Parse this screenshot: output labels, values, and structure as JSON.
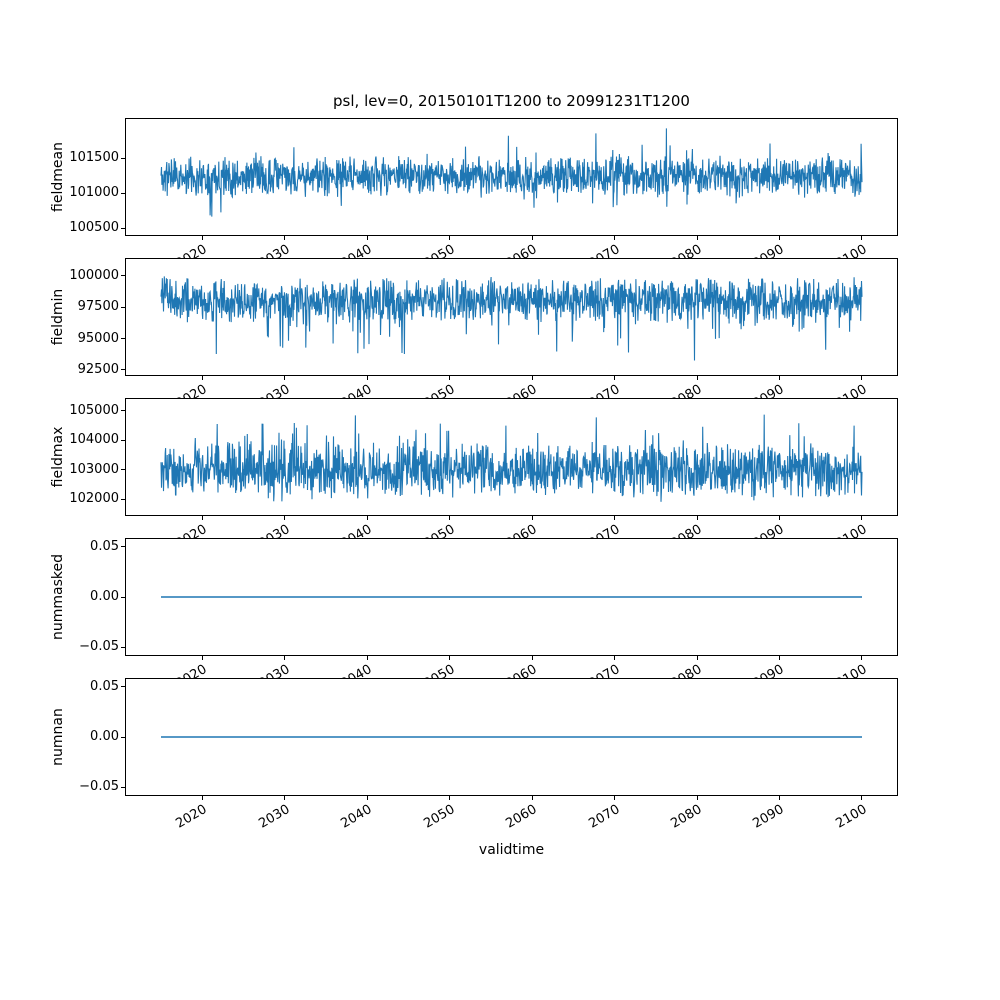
{
  "figure": {
    "background": "#ffffff",
    "line_color": "#1f77b4",
    "axes_color": "#000000"
  },
  "chart_data": {
    "type": "line",
    "title": "psl, lev=0, 20150101T1200 to 20991231T1200",
    "xlabel": "validtime",
    "legend": "none",
    "grid": false,
    "x_axis": {
      "lim": [
        2010.75,
        2104.25
      ],
      "data_start": 2015.0,
      "data_end": 2100.0,
      "ticks": [
        2020,
        2030,
        2040,
        2050,
        2060,
        2070,
        2080,
        2090,
        2100
      ],
      "tick_labels": [
        "2020",
        "2030",
        "2040",
        "2050",
        "2060",
        "2070",
        "2080",
        "2090",
        "2100"
      ],
      "tick_rotation_deg": 30
    },
    "subplots": [
      {
        "name": "fieldmean",
        "ylabel": "fieldmean",
        "ylim": [
          100400,
          102065
        ],
        "yticks": [
          {
            "value": 101500,
            "label": "101500"
          },
          {
            "value": 101000,
            "label": "101000"
          },
          {
            "value": 100500,
            "label": "100500"
          }
        ],
        "series": {
          "name": "fieldmean",
          "color": "#1f77b4",
          "approx_mean": 101240,
          "approx_min": 100500,
          "approx_max": 101950,
          "dense_band": [
            100930,
            101550
          ],
          "kind": "sym",
          "n": 1700,
          "seed": 11,
          "center": 101240,
          "amp": 310,
          "spike_prob": 0.06,
          "spike_amp": 460,
          "clamp": [
            100490,
            101930
          ]
        }
      },
      {
        "name": "fieldmin",
        "ylabel": "fieldmin",
        "ylim": [
          92100,
          101330
        ],
        "yticks": [
          {
            "value": 100000,
            "label": "100000"
          },
          {
            "value": 97500,
            "label": "97500"
          },
          {
            "value": 95000,
            "label": "95000"
          },
          {
            "value": 92500,
            "label": "92500"
          }
        ],
        "series": {
          "name": "fieldmin",
          "color": "#1f77b4",
          "approx_mean": 97900,
          "approx_min": 92450,
          "approx_max": 100050,
          "dense_band": [
            95900,
            99950
          ],
          "kind": "min",
          "n": 1700,
          "seed": 22,
          "top": 100050,
          "amp": 2000,
          "spike_prob": 0.06,
          "spike_amp": 3200,
          "clamp": [
            92450,
            100080
          ]
        }
      },
      {
        "name": "fieldmax",
        "ylabel": "fieldmax",
        "ylim": [
          101460,
          105400
        ],
        "yticks": [
          {
            "value": 105000,
            "label": "105000"
          },
          {
            "value": 104000,
            "label": "104000"
          },
          {
            "value": 103000,
            "label": "103000"
          },
          {
            "value": 102000,
            "label": "102000"
          }
        ],
        "series": {
          "name": "fieldmax",
          "color": "#1f77b4",
          "approx_mean": 102950,
          "approx_min": 101750,
          "approx_max": 105120,
          "dense_band": [
            102300,
            103800
          ],
          "kind": "max",
          "n": 1700,
          "seed": 33,
          "bottom": 101900,
          "amp": 1050,
          "spike_prob": 0.06,
          "spike_amp": 1350,
          "clamp": [
            101750,
            105120
          ]
        }
      },
      {
        "name": "nummasked",
        "ylabel": "nummasked",
        "ylim": [
          -0.0577,
          0.0577
        ],
        "yticks": [
          {
            "value": 0.05,
            "label": "0.05"
          },
          {
            "value": 0.0,
            "label": "0.00"
          },
          {
            "value": -0.05,
            "label": "−0.05"
          }
        ],
        "series": {
          "name": "nummasked",
          "color": "#1f77b4",
          "approx_mean": 0,
          "approx_min": 0,
          "approx_max": 0,
          "kind": "const",
          "n": 300,
          "seed": 44,
          "value": 0,
          "clamp": [
            0,
            0
          ]
        }
      },
      {
        "name": "numnan",
        "ylabel": "numnan",
        "ylim": [
          -0.0577,
          0.0577
        ],
        "yticks": [
          {
            "value": 0.05,
            "label": "0.05"
          },
          {
            "value": 0.0,
            "label": "0.00"
          },
          {
            "value": -0.05,
            "label": "−0.05"
          }
        ],
        "series": {
          "name": "numnan",
          "color": "#1f77b4",
          "approx_mean": 0,
          "approx_min": 0,
          "approx_max": 0,
          "kind": "const",
          "n": 300,
          "seed": 55,
          "value": 0,
          "clamp": [
            0,
            0
          ]
        }
      }
    ]
  }
}
